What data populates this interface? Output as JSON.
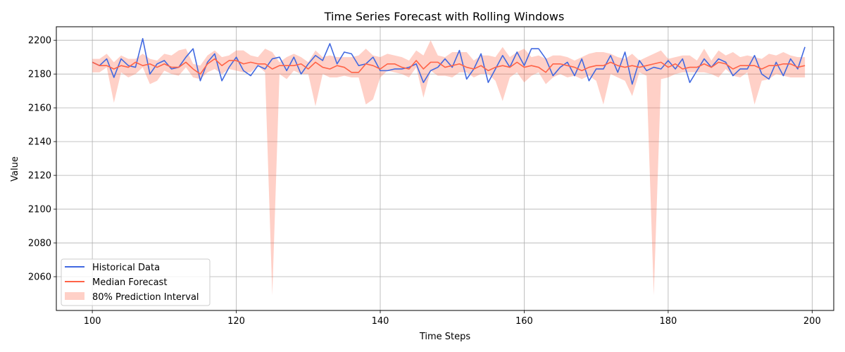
{
  "chart_data": {
    "type": "line",
    "title": "Time Series Forecast with Rolling Windows",
    "xlabel": "Time Steps",
    "ylabel": "Value",
    "xlim": [
      95,
      203
    ],
    "ylim": [
      2040,
      2208
    ],
    "xticks": [
      100,
      120,
      140,
      160,
      180,
      200
    ],
    "yticks": [
      2060,
      2080,
      2100,
      2120,
      2140,
      2160,
      2180,
      2200
    ],
    "grid": true,
    "legend_position": "lower-left",
    "x_start": 100,
    "series": [
      {
        "name": "Historical Data",
        "color": "#4169e1",
        "values": [
          2187,
          2185,
          2189,
          2178,
          2189,
          2185,
          2184,
          2201,
          2180,
          2186,
          2188,
          2183,
          2184,
          2190,
          2195,
          2176,
          2187,
          2192,
          2176,
          2184,
          2190,
          2182,
          2179,
          2185,
          2183,
          2189,
          2190,
          2182,
          2190,
          2180,
          2186,
          2191,
          2188,
          2198,
          2186,
          2193,
          2192,
          2185,
          2186,
          2190,
          2182,
          2182,
          2183,
          2183,
          2184,
          2186,
          2175,
          2182,
          2184,
          2189,
          2184,
          2194,
          2177,
          2183,
          2192,
          2175,
          2183,
          2191,
          2184,
          2193,
          2185,
          2195,
          2195,
          2189,
          2179,
          2184,
          2187,
          2179,
          2189,
          2176,
          2183,
          2183,
          2191,
          2181,
          2193,
          2174,
          2188,
          2182,
          2184,
          2183,
          2188,
          2183,
          2189,
          2175,
          2182,
          2189,
          2184,
          2189,
          2187,
          2179,
          2183,
          2183,
          2191,
          2180,
          2177,
          2187,
          2179,
          2189,
          2183,
          2196
        ]
      },
      {
        "name": "Median Forecast",
        "color": "#ff6347",
        "values": [
          2187,
          2185,
          2185,
          2183,
          2185,
          2184,
          2187,
          2185,
          2186,
          2184,
          2186,
          2184,
          2184,
          2187,
          2183,
          2180,
          2186,
          2189,
          2185,
          2188,
          2188,
          2186,
          2187,
          2186,
          2186,
          2183,
          2185,
          2185,
          2185,
          2186,
          2183,
          2187,
          2184,
          2183,
          2185,
          2184,
          2181,
          2181,
          2186,
          2185,
          2183,
          2186,
          2186,
          2184,
          2183,
          2188,
          2183,
          2187,
          2187,
          2184,
          2185,
          2186,
          2184,
          2183,
          2185,
          2182,
          2184,
          2185,
          2184,
          2187,
          2184,
          2185,
          2184,
          2181,
          2186,
          2186,
          2185,
          2184,
          2182,
          2184,
          2185,
          2185,
          2187,
          2185,
          2184,
          2185,
          2184,
          2185,
          2186,
          2187,
          2184,
          2186,
          2183,
          2184,
          2184,
          2186,
          2184,
          2187,
          2186,
          2183,
          2185,
          2185,
          2185,
          2183,
          2185,
          2185,
          2186,
          2186,
          2184,
          2185
        ]
      }
    ],
    "interval": {
      "name": "80% Prediction Interval",
      "color": "#ff6347",
      "opacity": 0.3,
      "lower": [
        2181,
        2181,
        2184,
        2163,
        2181,
        2178,
        2180,
        2184,
        2174,
        2176,
        2182,
        2180,
        2179,
        2184,
        2178,
        2177,
        2181,
        2183,
        2180,
        2183,
        2182,
        2181,
        2181,
        2185,
        2181,
        2049,
        2180,
        2177,
        2182,
        2180,
        2180,
        2161,
        2180,
        2178,
        2178,
        2179,
        2178,
        2178,
        2162,
        2165,
        2178,
        2182,
        2181,
        2180,
        2178,
        2184,
        2166,
        2182,
        2179,
        2179,
        2178,
        2181,
        2181,
        2178,
        2180,
        2180,
        2176,
        2164,
        2178,
        2181,
        2175,
        2179,
        2181,
        2174,
        2178,
        2180,
        2178,
        2179,
        2177,
        2179,
        2176,
        2162,
        2180,
        2178,
        2176,
        2167,
        2181,
        2179,
        2049,
        2177,
        2178,
        2180,
        2181,
        2181,
        2181,
        2181,
        2180,
        2178,
        2183,
        2179,
        2178,
        2181,
        2162,
        2176,
        2177,
        2180,
        2179,
        2178,
        2178,
        2178
      ],
      "upper": [
        2189,
        2189,
        2192,
        2187,
        2191,
        2189,
        2189,
        2192,
        2189,
        2188,
        2192,
        2191,
        2194,
        2195,
        2186,
        2185,
        2191,
        2194,
        2190,
        2191,
        2194,
        2194,
        2191,
        2190,
        2195,
        2193,
        2187,
        2190,
        2192,
        2190,
        2187,
        2194,
        2190,
        2191,
        2190,
        2190,
        2190,
        2191,
        2195,
        2191,
        2190,
        2192,
        2191,
        2190,
        2188,
        2194,
        2191,
        2200,
        2191,
        2190,
        2193,
        2193,
        2193,
        2188,
        2191,
        2191,
        2190,
        2196,
        2190,
        2193,
        2195,
        2190,
        2191,
        2189,
        2191,
        2191,
        2190,
        2188,
        2190,
        2192,
        2193,
        2193,
        2192,
        2190,
        2189,
        2192,
        2188,
        2190,
        2192,
        2194,
        2189,
        2190,
        2191,
        2191,
        2188,
        2195,
        2188,
        2194,
        2191,
        2193,
        2190,
        2191,
        2190,
        2189,
        2192,
        2191,
        2193,
        2191,
        2190,
        2190
      ]
    }
  }
}
